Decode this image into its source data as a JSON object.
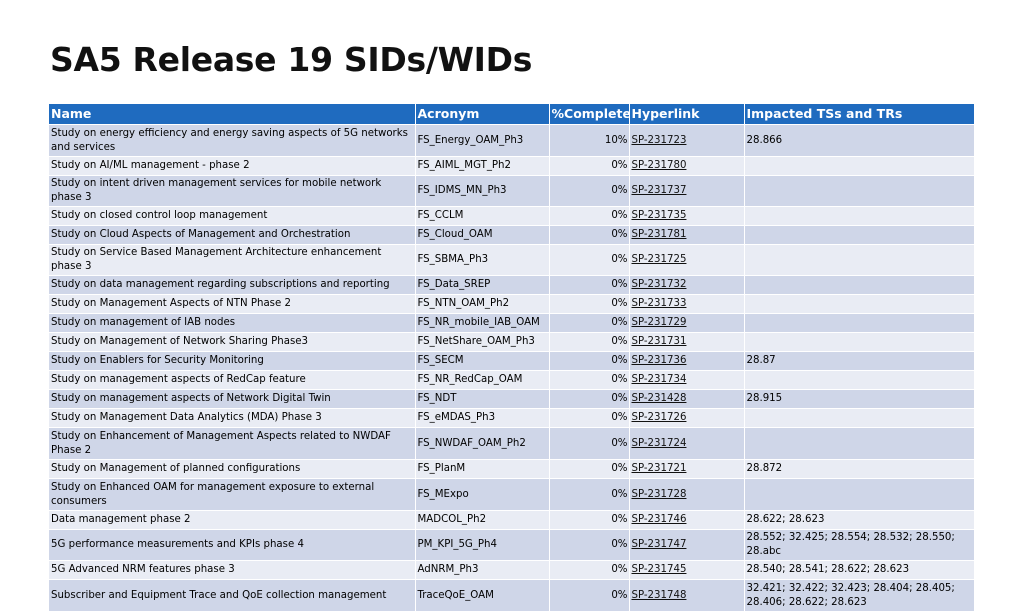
{
  "title": "SA5 Release 19 SIDs/WIDs",
  "table": {
    "headers": [
      "Name",
      "Acronym",
      "%Complete",
      "Hyperlink",
      "Impacted TSs and TRs"
    ],
    "rows": [
      {
        "name": " Study on energy efficiency and energy saving aspects of 5G networks and services",
        "acronym": "FS_Energy_OAM_Ph3",
        "complete": "10%",
        "link": "SP-231723",
        "impacted": "28.866"
      },
      {
        "name": "Study on AI/ML management - phase 2",
        "acronym": "FS_AIML_MGT_Ph2",
        "complete": "0%",
        "link": "SP-231780",
        "impacted": ""
      },
      {
        "name": "Study on intent driven management services for mobile network phase 3",
        "acronym": "FS_IDMS_MN_Ph3",
        "complete": "0%",
        "link": "SP-231737",
        "impacted": ""
      },
      {
        "name": "Study on closed control loop management",
        "acronym": "FS_CCLM",
        "complete": "0%",
        "link": "SP-231735",
        "impacted": ""
      },
      {
        "name": "Study on Cloud Aspects of Management and Orchestration",
        "acronym": "FS_Cloud_OAM",
        "complete": "0%",
        "link": "SP-231781",
        "impacted": ""
      },
      {
        "name": "Study on Service Based Management Architecture enhancement phase 3",
        "acronym": "FS_SBMA_Ph3",
        "complete": "0%",
        "link": "SP-231725",
        "impacted": ""
      },
      {
        "name": "Study on data management regarding subscriptions and reporting",
        "acronym": "FS_Data_SREP",
        "complete": "0%",
        "link": "SP-231732",
        "impacted": ""
      },
      {
        "name": "Study on Management Aspects of NTN Phase 2",
        "acronym": "FS_NTN_OAM_Ph2",
        "complete": "0%",
        "link": "SP-231733",
        "impacted": ""
      },
      {
        "name": "Study on management of IAB nodes",
        "acronym": "FS_NR_mobile_IAB_OAM",
        "complete": "0%",
        "link": "SP-231729",
        "impacted": ""
      },
      {
        "name": "Study on Management of Network Sharing Phase3",
        "acronym": "FS_NetShare_OAM_Ph3",
        "complete": "0%",
        "link": "SP-231731",
        "impacted": ""
      },
      {
        "name": "Study on Enablers for Security Monitoring",
        "acronym": "FS_SECM",
        "complete": "0%",
        "link": "SP-231736",
        "impacted": "28.87"
      },
      {
        "name": "Study on management aspects of RedCap feature",
        "acronym": "FS_NR_RedCap_OAM",
        "complete": "0%",
        "link": "SP-231734",
        "impacted": ""
      },
      {
        "name": "Study on management aspects of Network Digital Twin",
        "acronym": "FS_NDT",
        "complete": "0%",
        "link": "SP-231428",
        "impacted": "28.915"
      },
      {
        "name": "Study on Management Data Analytics (MDA) Phase 3",
        "acronym": "FS_eMDAS_Ph3",
        "complete": "0%",
        "link": "SP-231726",
        "impacted": ""
      },
      {
        "name": "Study on Enhancement of Management Aspects related to NWDAF Phase 2",
        "acronym": "FS_NWDAF_OAM_Ph2",
        "complete": "0%",
        "link": "SP-231724",
        "impacted": ""
      },
      {
        "name": "Study on Management of planned configurations",
        "acronym": "FS_PlanM",
        "complete": "0%",
        "link": "SP-231721",
        "impacted": "28.872"
      },
      {
        "name": "Study on Enhanced OAM for management exposure to external consumers",
        "acronym": "FS_MExpo",
        "complete": "0%",
        "link": "SP-231728",
        "impacted": ""
      },
      {
        "name": "Data management phase 2",
        "acronym": "MADCOL_Ph2",
        "complete": "0%",
        "link": "SP-231746",
        "impacted": "28.622; 28.623"
      },
      {
        "name": "5G performance measurements and KPIs phase 4",
        "acronym": "PM_KPI_5G_Ph4",
        "complete": "0%",
        "link": "SP-231747",
        "impacted": "28.552; 32.425; 28.554; 28.532; 28.550; 28.abc"
      },
      {
        "name": "5G Advanced NRM features phase 3",
        "acronym": "AdNRM_Ph3",
        "complete": "0%",
        "link": "SP-231745",
        "impacted": "28.540; 28.541; 28.622; 28.623"
      },
      {
        "name": "Subscriber and Equipment Trace and QoE collection management",
        "acronym": "TraceQoE_OAM",
        "complete": "0%",
        "link": "SP-231748",
        "impacted": "32.421; 32.422; 32.423; 28.404; 28.405; 28.406; 28.622; 28.623"
      }
    ]
  }
}
